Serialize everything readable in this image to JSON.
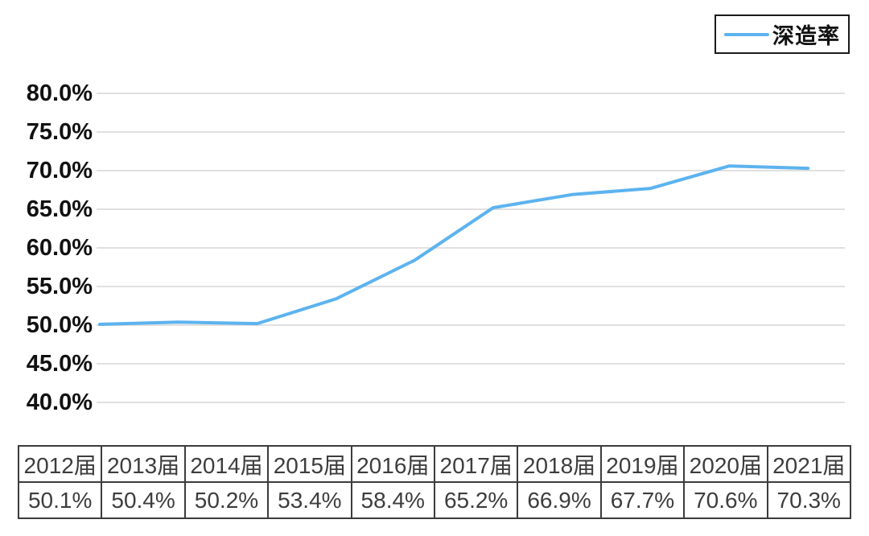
{
  "chart_data": {
    "type": "line",
    "legend": "深造率",
    "categories": [
      "2012届",
      "2013届",
      "2014届",
      "2015届",
      "2016届",
      "2017届",
      "2018届",
      "2019届",
      "2020届",
      "2021届"
    ],
    "values": [
      50.1,
      50.4,
      50.2,
      53.4,
      58.4,
      65.2,
      66.9,
      67.7,
      70.6,
      70.3
    ],
    "value_labels": [
      "50.1%",
      "50.4%",
      "50.2%",
      "53.4%",
      "58.4%",
      "65.2%",
      "66.9%",
      "67.7%",
      "70.6%",
      "70.3%"
    ],
    "ytick_values": [
      80,
      75,
      70,
      65,
      60,
      55,
      50,
      45,
      40
    ],
    "ytick_labels": [
      "80.0%",
      "75.0%",
      "70.0%",
      "65.0%",
      "60.0%",
      "55.0%",
      "50.0%",
      "45.0%",
      "40.0%"
    ],
    "ylim": [
      40,
      80
    ],
    "grid": true,
    "legend_position": "top-right",
    "line_color": "#5cb3ef",
    "grid_color": "#e0e0e0",
    "table_border_color": "#3c3c3c",
    "table_text_color": "#3d3d3d",
    "axis_label_color": "#111111"
  }
}
